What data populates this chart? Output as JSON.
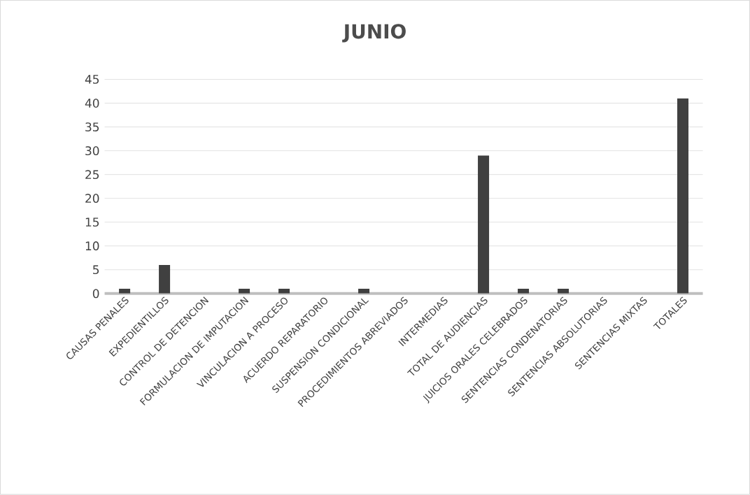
{
  "chart_data": {
    "type": "bar",
    "title": "JUNIO",
    "categories": [
      "CAUSAS PENALES",
      "EXPEDIENTILLOS",
      "CONTROL DE DETENCION",
      "FORMULACION DE IMPUTACION",
      "VINCULACION A PROCESO",
      "ACUERDO REPARATORIO",
      "SUSPENSION CONDICIONAL",
      "PROCEDIMIENTOS ABREVIADOS",
      "INTERMEDIAS",
      "TOTAL DE AUDIENCIAS",
      "JUICIOS ORALES  CELEBRADOS",
      "SENTENCIAS CONDENATORIAS",
      "SENTENCIAS ABSOLUTORIAS",
      "SENTENCIAS MIXTAS",
      "TOTALES"
    ],
    "values": [
      1,
      6,
      0,
      1,
      1,
      0,
      1,
      0,
      0,
      29,
      1,
      1,
      0,
      0,
      41
    ],
    "color": "#404040",
    "ylim": [
      0,
      45
    ],
    "yticks": [
      0,
      5,
      10,
      15,
      20,
      25,
      30,
      35,
      40,
      45
    ],
    "grid": "y"
  }
}
